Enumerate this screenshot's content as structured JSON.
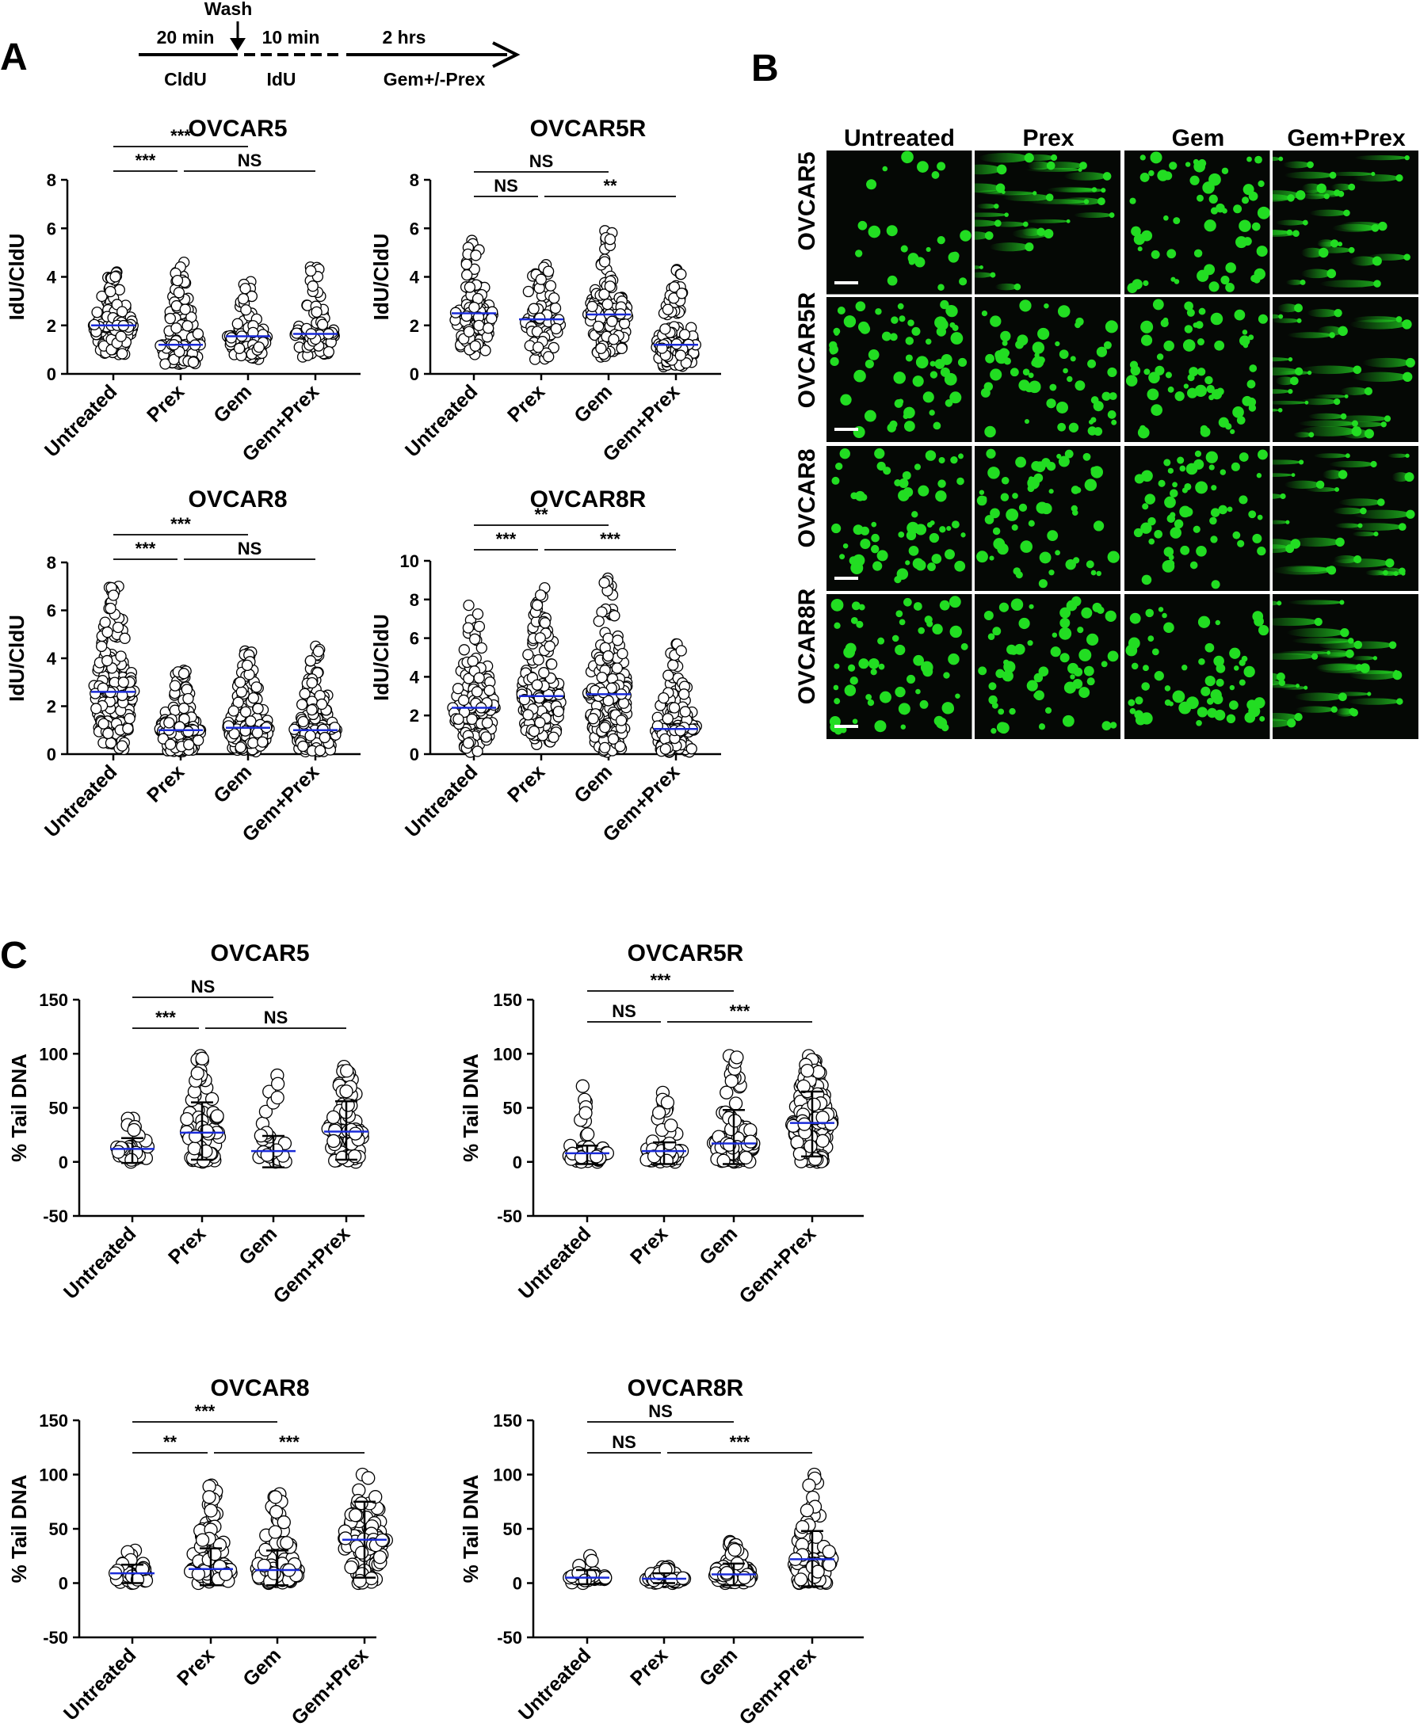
{
  "panel_labels": {
    "a": "A",
    "b": "B",
    "c": "C"
  },
  "timeline": {
    "wash": "Wash",
    "seg1_time": "20 min",
    "seg1_label": "CldU",
    "seg2_time": "10 min",
    "seg2_label": "IdU",
    "seg3_time": "2  hrs",
    "seg3_label": "Gem+/-Prex"
  },
  "microscopy": {
    "columns": [
      "Untreated",
      "Prex",
      "Gem",
      "Gem+Prex"
    ],
    "rows": [
      "OVCAR5",
      "OVCAR5R",
      "OVCAR8",
      "OVCAR8R"
    ],
    "background": "#050805",
    "comet_color": "#22dd22"
  },
  "colors": {
    "median": "#1a2bd8",
    "marker_edge": "#000000"
  },
  "chart_data": [
    {
      "id": "A1",
      "type": "scatter",
      "title": "OVCAR5",
      "ylabel": "IdU/CldU",
      "categories": [
        "Untreated",
        "Prex",
        "Gem",
        "Gem+Prex"
      ],
      "ylim": [
        0,
        8
      ],
      "yticks": [
        0,
        2,
        4,
        6,
        8
      ],
      "median": [
        2.0,
        1.2,
        1.55,
        1.65
      ],
      "spread": [
        [
          0.8,
          4.2
        ],
        [
          0.4,
          4.6
        ],
        [
          0.6,
          3.8
        ],
        [
          0.7,
          4.4
        ]
      ],
      "n": [
        140,
        150,
        90,
        85
      ],
      "brackets": [
        {
          "from": 0,
          "to": 1,
          "label": "***",
          "level": 0
        },
        {
          "from": 0,
          "to": 2,
          "label": "***",
          "level": 1
        },
        {
          "from": 1,
          "to": 3,
          "label": "NS",
          "level": 0
        }
      ]
    },
    {
      "id": "A2",
      "type": "scatter",
      "title": "OVCAR5R",
      "ylabel": "IdU/CldU",
      "categories": [
        "Untreated",
        "Prex",
        "Gem",
        "Gem+Prex"
      ],
      "ylim": [
        0,
        8
      ],
      "yticks": [
        0,
        2,
        4,
        6,
        8
      ],
      "median": [
        2.5,
        2.25,
        2.45,
        1.2
      ],
      "spread": [
        [
          0.8,
          5.5
        ],
        [
          0.6,
          4.5
        ],
        [
          0.7,
          5.9
        ],
        [
          0.3,
          4.3
        ]
      ],
      "n": [
        110,
        60,
        130,
        150
      ],
      "brackets": [
        {
          "from": 0,
          "to": 1,
          "label": "NS",
          "level": 0
        },
        {
          "from": 0,
          "to": 2,
          "label": "NS",
          "level": 1
        },
        {
          "from": 1,
          "to": 3,
          "label": "**",
          "level": 0
        }
      ]
    },
    {
      "id": "A3",
      "type": "scatter",
      "title": "OVCAR8",
      "ylabel": "IdU/CldU",
      "categories": [
        "Untreated",
        "Prex",
        "Gem",
        "Gem+Prex"
      ],
      "ylim": [
        0,
        8
      ],
      "yticks": [
        0,
        2,
        4,
        6,
        8
      ],
      "median": [
        2.6,
        1.0,
        1.1,
        1.0
      ],
      "spread": [
        [
          0.2,
          7.0
        ],
        [
          0.1,
          3.5
        ],
        [
          0.1,
          4.3
        ],
        [
          0.1,
          4.5
        ]
      ],
      "n": [
        170,
        170,
        170,
        170
      ],
      "brackets": [
        {
          "from": 0,
          "to": 1,
          "label": "***",
          "level": 0
        },
        {
          "from": 0,
          "to": 2,
          "label": "***",
          "level": 1
        },
        {
          "from": 1,
          "to": 3,
          "label": "NS",
          "level": 0
        }
      ]
    },
    {
      "id": "A4",
      "type": "scatter",
      "title": "OVCAR8R",
      "ylabel": "IdU/CldU",
      "categories": [
        "Untreated",
        "Prex",
        "Gem",
        "Gem+Prex"
      ],
      "ylim": [
        0,
        10
      ],
      "yticks": [
        0,
        2,
        4,
        6,
        8,
        10
      ],
      "median": [
        2.4,
        3.0,
        3.1,
        1.3
      ],
      "spread": [
        [
          0.1,
          7.7
        ],
        [
          0.5,
          8.6
        ],
        [
          0.1,
          9.1
        ],
        [
          0.1,
          5.7
        ]
      ],
      "n": [
        150,
        160,
        160,
        140
      ],
      "brackets": [
        {
          "from": 0,
          "to": 1,
          "label": "***",
          "level": 0
        },
        {
          "from": 0,
          "to": 2,
          "label": "**",
          "level": 1
        },
        {
          "from": 1,
          "to": 3,
          "label": "***",
          "level": 0
        }
      ]
    },
    {
      "id": "C1",
      "type": "scatter",
      "title": "OVCAR5",
      "ylabel": "% Tail DNA",
      "categories": [
        "Untreated",
        "Prex",
        "Gem",
        "Gem+Prex"
      ],
      "ylim": [
        -50,
        150
      ],
      "yticks": [
        -50,
        0,
        50,
        100,
        150
      ],
      "median": [
        12,
        27,
        10,
        28
      ],
      "spread": [
        [
          0,
          40
        ],
        [
          0,
          98
        ],
        [
          0,
          80
        ],
        [
          0,
          88
        ]
      ],
      "n": [
        25,
        70,
        25,
        75
      ],
      "errorbar": [
        [
          -1,
          22
        ],
        [
          2,
          55
        ],
        [
          -5,
          24
        ],
        [
          2,
          56
        ]
      ],
      "brackets": [
        {
          "from": 0,
          "to": 1,
          "label": "***",
          "level": 0
        },
        {
          "from": 0,
          "to": 2,
          "label": "NS",
          "level": 1
        },
        {
          "from": 1,
          "to": 3,
          "label": "NS",
          "level": 0
        }
      ]
    },
    {
      "id": "C2",
      "type": "scatter",
      "title": "OVCAR5R",
      "ylabel": "% Tail DNA",
      "categories": [
        "Untreated",
        "Prex",
        "Gem",
        "Gem+Prex"
      ],
      "ylim": [
        -50,
        150
      ],
      "yticks": [
        -50,
        0,
        50,
        100,
        150
      ],
      "median": [
        8,
        10,
        17,
        36
      ],
      "spread": [
        [
          0,
          70
        ],
        [
          0,
          64
        ],
        [
          0,
          98
        ],
        [
          0,
          98
        ]
      ],
      "n": [
        40,
        55,
        110,
        220
      ],
      "errorbar": [
        [
          -2,
          15
        ],
        [
          -2,
          18
        ],
        [
          -2,
          48
        ],
        [
          5,
          65
        ]
      ],
      "brackets": [
        {
          "from": 0,
          "to": 1,
          "label": "NS",
          "level": 0
        },
        {
          "from": 0,
          "to": 2,
          "label": "***",
          "level": 1
        },
        {
          "from": 1,
          "to": 3,
          "label": "***",
          "level": 0
        }
      ]
    },
    {
      "id": "C3",
      "type": "scatter",
      "title": "OVCAR8",
      "ylabel": "% Tail DNA",
      "categories": [
        "Untreated",
        "Prex",
        "Gem",
        "Gem+Prex"
      ],
      "ylim": [
        -50,
        150
      ],
      "yticks": [
        -50,
        0,
        50,
        100,
        150
      ],
      "median": [
        9,
        13,
        12,
        40
      ],
      "spread": [
        [
          0,
          30
        ],
        [
          0,
          90
        ],
        [
          0,
          82
        ],
        [
          0,
          100
        ]
      ],
      "n": [
        35,
        90,
        95,
        90
      ],
      "errorbar": [
        [
          0,
          17
        ],
        [
          -2,
          32
        ],
        [
          -2,
          30
        ],
        [
          5,
          75
        ]
      ],
      "brackets": [
        {
          "from": 0,
          "to": 1,
          "label": "**",
          "level": 0
        },
        {
          "from": 0,
          "to": 2,
          "label": "***",
          "level": 1
        },
        {
          "from": 1,
          "to": 3,
          "label": "***",
          "level": 0
        }
      ]
    },
    {
      "id": "C4",
      "type": "scatter",
      "title": "OVCAR8R",
      "ylabel": "% Tail DNA",
      "categories": [
        "Untreated",
        "Prex",
        "Gem",
        "Gem+Prex"
      ],
      "ylim": [
        -50,
        150
      ],
      "yticks": [
        -50,
        0,
        50,
        100,
        150
      ],
      "median": [
        5,
        4,
        8,
        22
      ],
      "spread": [
        [
          0,
          25
        ],
        [
          0,
          15
        ],
        [
          0,
          38
        ],
        [
          0,
          100
        ]
      ],
      "n": [
        45,
        60,
        70,
        95
      ],
      "errorbar": [
        [
          -1,
          12
        ],
        [
          0,
          9
        ],
        [
          -2,
          18
        ],
        [
          -3,
          48
        ]
      ],
      "brackets": [
        {
          "from": 0,
          "to": 1,
          "label": "NS",
          "level": 0
        },
        {
          "from": 0,
          "to": 2,
          "label": "NS",
          "level": 1
        },
        {
          "from": 1,
          "to": 3,
          "label": "***",
          "level": 0
        }
      ]
    }
  ]
}
